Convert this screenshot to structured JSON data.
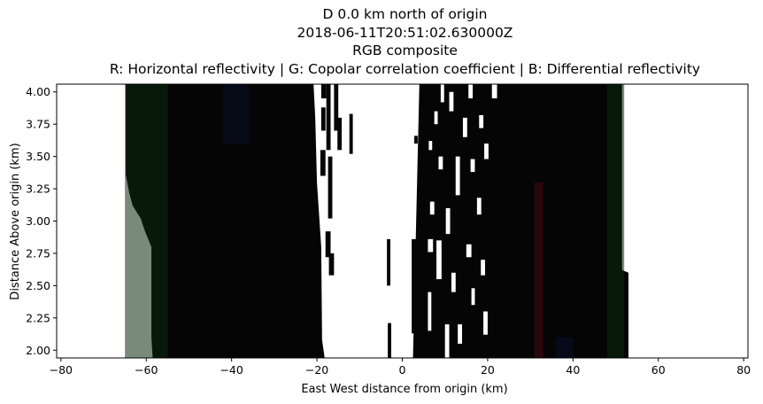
{
  "chart_data": {
    "type": "heatmap",
    "title_lines": [
      "D 0.0 km north of origin",
      "2018-06-11T20:51:02.630000Z",
      "RGB composite",
      "R: Horizontal reflectivity | G: Copolar correlation coefficient | B: Differential reflectivity"
    ],
    "xlabel": "East West distance from origin (km)",
    "ylabel": "Distance Above origin (km)",
    "xlim": [
      -81,
      81
    ],
    "ylim": [
      1.94,
      4.06
    ],
    "x_ticks": [
      -80,
      -60,
      -40,
      -20,
      0,
      20,
      40,
      60,
      80
    ],
    "y_ticks": [
      2.0,
      2.25,
      2.5,
      2.75,
      3.0,
      3.25,
      3.5,
      3.75,
      4.0
    ],
    "y_tick_labels": [
      "2.00",
      "2.25",
      "2.50",
      "2.75",
      "3.00",
      "3.25",
      "3.50",
      "3.75",
      "4.00"
    ],
    "x_tick_labels": [
      "−80",
      "−60",
      "−40",
      "−20",
      "0",
      "20",
      "40",
      "60",
      "80"
    ],
    "colors": {
      "no_data": "#ffffff",
      "echo_dark": "#050505",
      "green_tint": "#0d2a0d",
      "blue_tint": "#0a0f2a",
      "red_tint": "#4a0a14"
    },
    "regions": [
      {
        "name": "western-echo",
        "x_left_edge": [
          [
            1.94,
            -58.5
          ],
          [
            2.1,
            -58.8
          ],
          [
            2.8,
            -58.8
          ],
          [
            2.92,
            -60.3
          ],
          [
            3.02,
            -61.3
          ],
          [
            3.12,
            -63.2
          ],
          [
            3.22,
            -64.0
          ],
          [
            3.36,
            -64.8
          ],
          [
            4.06,
            -64.8
          ]
        ],
        "x_right_edge": [
          [
            1.94,
            -18.2
          ],
          [
            2.08,
            -18.8
          ],
          [
            2.8,
            -19.0
          ],
          [
            3.3,
            -20.0
          ],
          [
            3.8,
            -20.4
          ],
          [
            4.06,
            -20.8
          ]
        ],
        "fill": "echo_dark"
      },
      {
        "name": "eastern-echo",
        "x_left_edge": [
          [
            1.94,
            2.5
          ],
          [
            4.06,
            4.0
          ]
        ],
        "x_right_edge": [
          [
            1.94,
            53.0
          ],
          [
            2.6,
            53.0
          ],
          [
            2.62,
            51.5
          ],
          [
            4.06,
            51.5
          ]
        ],
        "fill": "echo_dark"
      }
    ],
    "tints": [
      {
        "x": [
          -65,
          -55
        ],
        "y": [
          1.94,
          4.06
        ],
        "color": "green_tint"
      },
      {
        "x": [
          48,
          52
        ],
        "y": [
          1.94,
          4.06
        ],
        "color": "green_tint"
      },
      {
        "x": [
          -42,
          -36
        ],
        "y": [
          3.6,
          4.06
        ],
        "color": "blue_tint"
      },
      {
        "x": [
          31,
          33
        ],
        "y": [
          1.94,
          3.3
        ],
        "color": "red_tint"
      },
      {
        "x": [
          36,
          40
        ],
        "y": [
          1.94,
          2.1
        ],
        "color": "blue_tint"
      }
    ],
    "gap_bars": [
      {
        "x": [
          -19.0,
          -17.8
        ],
        "y": [
          3.95,
          4.06
        ],
        "fill": "echo_dark"
      },
      {
        "x": [
          -19.0,
          -18.0
        ],
        "y": [
          3.7,
          3.88
        ],
        "fill": "echo_dark"
      },
      {
        "x": [
          -19.2,
          -18.0
        ],
        "y": [
          3.35,
          3.55
        ],
        "fill": "echo_dark"
      },
      {
        "x": [
          -17.8,
          -16.8
        ],
        "y": [
          3.55,
          4.06
        ],
        "fill": "echo_dark"
      },
      {
        "x": [
          -17.4,
          -16.4
        ],
        "y": [
          3.02,
          3.5
        ],
        "fill": "echo_dark"
      },
      {
        "x": [
          -18.0,
          -16.8
        ],
        "y": [
          2.72,
          2.92
        ],
        "fill": "echo_dark"
      },
      {
        "x": [
          -17.2,
          -16.0
        ],
        "y": [
          2.58,
          2.75
        ],
        "fill": "echo_dark"
      },
      {
        "x": [
          -16.0,
          -15.0
        ],
        "y": [
          3.7,
          4.06
        ],
        "fill": "echo_dark"
      },
      {
        "x": [
          -15.2,
          -14.2
        ],
        "y": [
          3.55,
          3.8
        ],
        "fill": "echo_dark"
      },
      {
        "x": [
          -12.4,
          -11.6
        ],
        "y": [
          3.52,
          3.83
        ],
        "fill": "echo_dark"
      },
      {
        "x": [
          -3.6,
          -2.8
        ],
        "y": [
          2.5,
          2.86
        ],
        "fill": "echo_dark"
      },
      {
        "x": [
          -3.4,
          -2.6
        ],
        "y": [
          1.94,
          2.21
        ],
        "fill": "echo_dark"
      },
      {
        "x": [
          2.2,
          3.2
        ],
        "y": [
          2.13,
          2.86
        ],
        "fill": "echo_dark"
      },
      {
        "x": [
          2.8,
          3.6
        ],
        "y": [
          3.6,
          3.66
        ],
        "fill": "echo_dark"
      }
    ],
    "white_slits": [
      {
        "x": [
          6.0,
          6.8
        ],
        "y": [
          2.15,
          2.45
        ]
      },
      {
        "x": [
          6.0,
          7.2
        ],
        "y": [
          2.76,
          2.86
        ]
      },
      {
        "x": [
          6.5,
          7.5
        ],
        "y": [
          3.05,
          3.15
        ]
      },
      {
        "x": [
          6.2,
          7.0
        ],
        "y": [
          3.55,
          3.62
        ]
      },
      {
        "x": [
          7.5,
          8.3
        ],
        "y": [
          3.75,
          3.85
        ]
      },
      {
        "x": [
          8.0,
          9.2
        ],
        "y": [
          2.55,
          2.85
        ]
      },
      {
        "x": [
          8.5,
          9.5
        ],
        "y": [
          3.4,
          3.5
        ]
      },
      {
        "x": [
          9.0,
          9.8
        ],
        "y": [
          3.92,
          4.06
        ]
      },
      {
        "x": [
          10.0,
          11.0
        ],
        "y": [
          1.94,
          2.2
        ]
      },
      {
        "x": [
          10.2,
          11.2
        ],
        "y": [
          2.9,
          3.1
        ]
      },
      {
        "x": [
          11.0,
          12.0
        ],
        "y": [
          3.85,
          4.0
        ]
      },
      {
        "x": [
          11.5,
          12.5
        ],
        "y": [
          2.45,
          2.6
        ]
      },
      {
        "x": [
          12.5,
          13.5
        ],
        "y": [
          3.2,
          3.5
        ]
      },
      {
        "x": [
          13.0,
          14.0
        ],
        "y": [
          2.05,
          2.2
        ]
      },
      {
        "x": [
          14.2,
          15.2
        ],
        "y": [
          3.65,
          3.8
        ]
      },
      {
        "x": [
          15.0,
          16.2
        ],
        "y": [
          2.72,
          2.82
        ]
      },
      {
        "x": [
          15.5,
          16.5
        ],
        "y": [
          3.95,
          4.06
        ]
      },
      {
        "x": [
          16.0,
          17.0
        ],
        "y": [
          3.38,
          3.48
        ]
      },
      {
        "x": [
          16.2,
          17.0
        ],
        "y": [
          2.35,
          2.48
        ]
      },
      {
        "x": [
          17.5,
          18.5
        ],
        "y": [
          3.05,
          3.18
        ]
      },
      {
        "x": [
          18.0,
          19.0
        ],
        "y": [
          3.72,
          3.82
        ]
      },
      {
        "x": [
          18.4,
          19.4
        ],
        "y": [
          2.58,
          2.7
        ]
      },
      {
        "x": [
          19.0,
          20.0
        ],
        "y": [
          2.12,
          2.3
        ]
      },
      {
        "x": [
          19.2,
          20.2
        ],
        "y": [
          3.48,
          3.6
        ]
      },
      {
        "x": [
          21.0,
          22.2
        ],
        "y": [
          3.95,
          4.06
        ]
      }
    ]
  }
}
